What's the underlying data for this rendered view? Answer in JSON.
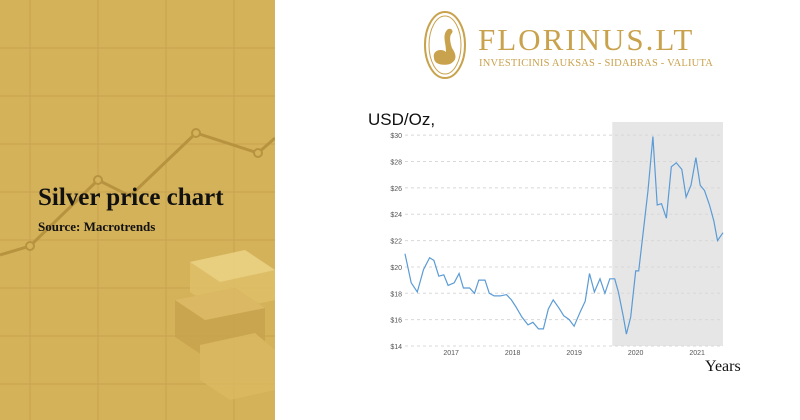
{
  "panel": {
    "title": "Silver price chart",
    "subtitle": "Source: Macrotrends"
  },
  "logo": {
    "brand": "FLORINUS.LT",
    "tagline": "INVESTICINIS AUKSAS - SIDABRAS - VALIUTA",
    "icon": "swan-egg-icon"
  },
  "colors": {
    "panel": "#d4b25a",
    "brand": "#c9a24d",
    "line": "#5b9bd5",
    "shade": "#e6e6e6"
  },
  "chart_data": {
    "type": "line",
    "title": "",
    "ylabel": "USD/Oz,",
    "xlabel": "Years",
    "ylim": [
      14,
      31
    ],
    "xlim": [
      2016.25,
      2021.42
    ],
    "yticks": [
      14,
      16,
      18,
      20,
      22,
      24,
      26,
      28,
      30
    ],
    "ytick_labels": [
      "$14",
      "$16",
      "$18",
      "$20",
      "$22",
      "$24",
      "$26",
      "$28",
      "$30"
    ],
    "xticks": [
      2017,
      2018,
      2019,
      2020,
      2021
    ],
    "xtick_labels": [
      "2017",
      "2018",
      "2019",
      "2020",
      "2021"
    ],
    "grid": "horizontal dashed",
    "shaded_region": [
      2019.62,
      2021.42
    ],
    "series": [
      {
        "values": [
          [
            2016.25,
            21.0
          ],
          [
            2016.35,
            18.8
          ],
          [
            2016.45,
            18.1
          ],
          [
            2016.55,
            19.8
          ],
          [
            2016.65,
            20.7
          ],
          [
            2016.72,
            20.5
          ],
          [
            2016.8,
            19.3
          ],
          [
            2016.88,
            19.4
          ],
          [
            2016.95,
            18.6
          ],
          [
            2017.05,
            18.8
          ],
          [
            2017.13,
            19.5
          ],
          [
            2017.2,
            18.4
          ],
          [
            2017.3,
            18.4
          ],
          [
            2017.38,
            18.0
          ],
          [
            2017.45,
            19.0
          ],
          [
            2017.55,
            19.0
          ],
          [
            2017.62,
            18.0
          ],
          [
            2017.7,
            17.8
          ],
          [
            2017.8,
            17.8
          ],
          [
            2017.9,
            17.9
          ],
          [
            2017.98,
            17.5
          ],
          [
            2018.05,
            17.0
          ],
          [
            2018.15,
            16.2
          ],
          [
            2018.25,
            15.6
          ],
          [
            2018.33,
            15.8
          ],
          [
            2018.42,
            15.3
          ],
          [
            2018.5,
            15.3
          ],
          [
            2018.58,
            16.8
          ],
          [
            2018.66,
            17.5
          ],
          [
            2018.75,
            16.9
          ],
          [
            2018.83,
            16.3
          ],
          [
            2018.92,
            16.0
          ],
          [
            2019.0,
            15.5
          ],
          [
            2019.1,
            16.6
          ],
          [
            2019.18,
            17.4
          ],
          [
            2019.25,
            19.5
          ],
          [
            2019.33,
            18.1
          ],
          [
            2019.42,
            19.1
          ],
          [
            2019.5,
            18.0
          ],
          [
            2019.58,
            19.1
          ],
          [
            2019.66,
            19.1
          ],
          [
            2019.72,
            18.1
          ],
          [
            2019.8,
            16.2
          ],
          [
            2019.85,
            14.9
          ],
          [
            2019.92,
            16.2
          ],
          [
            2020.0,
            19.7
          ],
          [
            2020.05,
            19.7
          ],
          [
            2020.12,
            22.5
          ],
          [
            2020.2,
            25.8
          ],
          [
            2020.28,
            29.9
          ],
          [
            2020.35,
            24.7
          ],
          [
            2020.42,
            24.8
          ],
          [
            2020.5,
            23.7
          ],
          [
            2020.58,
            27.6
          ],
          [
            2020.66,
            27.9
          ],
          [
            2020.75,
            27.4
          ],
          [
            2020.82,
            25.3
          ],
          [
            2020.9,
            26.2
          ],
          [
            2020.98,
            28.3
          ],
          [
            2021.05,
            26.2
          ],
          [
            2021.12,
            25.8
          ],
          [
            2021.2,
            24.7
          ],
          [
            2021.27,
            23.5
          ],
          [
            2021.33,
            22.0
          ],
          [
            2021.42,
            22.6
          ]
        ]
      }
    ]
  }
}
